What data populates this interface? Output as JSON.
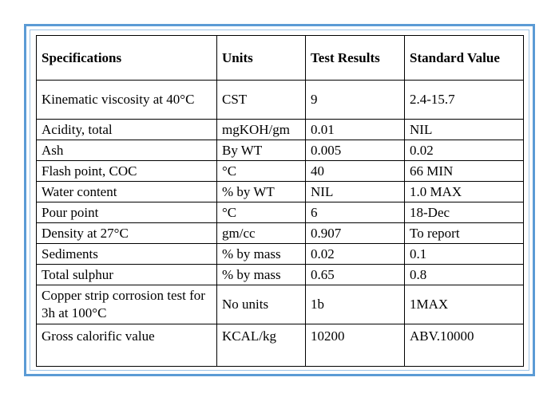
{
  "headers": [
    "Specifications",
    "Units",
    "Test Results",
    "Standard Value"
  ],
  "rows": [
    [
      "Kinematic viscosity at 40°C",
      "CST",
      "9",
      "2.4-15.7"
    ],
    [
      "Acidity, total",
      "mgKOH/gm",
      "0.01",
      "NIL"
    ],
    [
      "Ash",
      "By WT",
      "0.005",
      "0.02"
    ],
    [
      "Flash point, COC",
      "°C",
      "40",
      "66 MIN"
    ],
    [
      "Water content",
      "% by WT",
      "NIL",
      "1.0 MAX"
    ],
    [
      "Pour point",
      "°C",
      "6",
      "18-Dec"
    ],
    [
      "Density at 27°C",
      "gm/cc",
      "0.907",
      "To report"
    ],
    [
      "Sediments",
      "% by mass",
      "0.02",
      "0.1"
    ],
    [
      "Total sulphur",
      "% by mass",
      "0.65",
      "0.8"
    ],
    [
      "Copper strip corrosion test for 3h at 100°C",
      "No units",
      "1b",
      "1MAX"
    ],
    [
      "Gross calorific value",
      "KCAL/kg",
      "10200",
      "ABV.10000"
    ]
  ]
}
